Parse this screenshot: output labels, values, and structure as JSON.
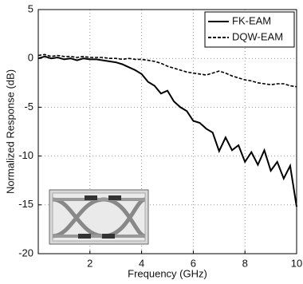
{
  "chart_data": {
    "type": "line",
    "x_label": "Frequency (GHz)",
    "y_label": "Normalized Response (dB)",
    "x": [
      0,
      0.25,
      0.5,
      0.75,
      1,
      1.25,
      1.5,
      1.75,
      2,
      2.25,
      2.5,
      2.75,
      3,
      3.25,
      3.5,
      3.75,
      4,
      4.25,
      4.5,
      4.75,
      5,
      5.25,
      5.5,
      5.75,
      6,
      6.25,
      6.5,
      6.75,
      7,
      7.25,
      7.5,
      7.75,
      8,
      8.25,
      8.5,
      8.75,
      9,
      9.25,
      9.5,
      9.75,
      10
    ],
    "series": [
      {
        "name": "FK-EAM",
        "color": "#000000",
        "dash": "solid",
        "values": [
          0,
          0.2,
          0,
          0.1,
          -0.1,
          0,
          -0.2,
          0,
          -0.1,
          -0.1,
          -0.2,
          -0.3,
          -0.4,
          -0.6,
          -0.9,
          -1.2,
          -1.6,
          -2.4,
          -2.8,
          -3.6,
          -3.3,
          -4.4,
          -5.0,
          -5.4,
          -6.4,
          -6.6,
          -7.2,
          -7.6,
          -9.5,
          -8.1,
          -9.4,
          -8.9,
          -10.6,
          -9.6,
          -10.9,
          -9.4,
          -11.5,
          -10.6,
          -12.3,
          -11.0,
          -15.2
        ]
      },
      {
        "name": "DQW-EAM",
        "color": "#000000",
        "dash": "dashed",
        "values": [
          0.3,
          0.4,
          0.2,
          0.3,
          0.2,
          0.2,
          0.1,
          0.2,
          0.1,
          0.1,
          0.1,
          0,
          0,
          -0.1,
          0,
          -0.1,
          -0.1,
          -0.2,
          -0.3,
          -0.5,
          -0.8,
          -1.0,
          -1.2,
          -1.4,
          -1.5,
          -1.6,
          -1.7,
          -1.5,
          -1.3,
          -1.5,
          -1.8,
          -2.0,
          -2.2,
          -2.3,
          -2.5,
          -2.6,
          -2.7,
          -2.6,
          -2.6,
          -2.8,
          -2.9
        ]
      }
    ],
    "xlim": [
      0,
      10
    ],
    "xticks": [
      2,
      4,
      6,
      8,
      10
    ],
    "ylim": [
      -20,
      5
    ],
    "yticks": [
      -20,
      -15,
      -10,
      -5,
      0,
      5
    ],
    "grid": true,
    "legend": "upper right"
  }
}
